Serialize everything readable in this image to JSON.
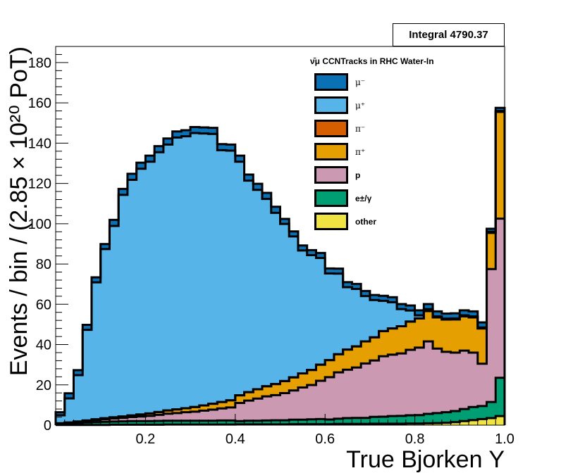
{
  "stat_box": {
    "label": "Integral 4790.37"
  },
  "legend": {
    "title": "ν̄μ CCNTracks in RHC Water-In",
    "items": [
      {
        "label": "μ⁻",
        "color": "#0a71b4",
        "bold": false
      },
      {
        "label": "μ⁺",
        "color": "#56b4e9",
        "bold": false
      },
      {
        "label": "π⁻",
        "color": "#d55e00",
        "bold": false
      },
      {
        "label": "π⁺",
        "color": "#e69f00",
        "bold": false
      },
      {
        "label": "p",
        "color": "#cc99b3",
        "bold": true
      },
      {
        "label": "e±/γ",
        "color": "#009e73",
        "bold": true
      },
      {
        "label": "other",
        "color": "#f0e442",
        "bold": true
      }
    ]
  },
  "chart_data": {
    "type": "area",
    "stacked": true,
    "xlabel": "True Bjorken Y",
    "ylabel": "Events / bin / (2.85 × 10²⁰ PoT)",
    "xlim": [
      0,
      1
    ],
    "ylim": [
      0,
      188
    ],
    "xticks": [
      "0.2",
      "0.4",
      "0.6",
      "0.8",
      "1.0"
    ],
    "yticks": [
      "0",
      "20",
      "40",
      "60",
      "80",
      "100",
      "120",
      "140",
      "160",
      "180"
    ],
    "bin_edges_start": 0.0,
    "bin_width": 0.02,
    "series": [
      {
        "name": "other",
        "color": "#f0e442",
        "values": [
          0.1,
          0.1,
          0.1,
          0.1,
          0.1,
          0.1,
          0.2,
          0.2,
          0.2,
          0.2,
          0.2,
          0.2,
          0.3,
          0.3,
          0.3,
          0.3,
          0.3,
          0.3,
          0.3,
          0.3,
          0.4,
          0.4,
          0.4,
          0.4,
          0.4,
          0.4,
          0.5,
          0.5,
          0.5,
          0.5,
          0.5,
          0.6,
          0.6,
          0.6,
          0.6,
          0.7,
          0.7,
          0.7,
          0.7,
          0.8,
          0.8,
          0.9,
          1.0,
          1.2,
          1.5,
          2.0,
          2.5,
          3.0,
          3.5,
          4.5
        ]
      },
      {
        "name": "e±/γ",
        "color": "#009e73",
        "values": [
          0.5,
          0.8,
          1.0,
          1.2,
          1.4,
          1.5,
          1.6,
          1.7,
          1.8,
          1.8,
          1.8,
          1.9,
          1.9,
          1.9,
          1.9,
          1.9,
          1.9,
          1.9,
          2.0,
          2.0,
          1.6,
          1.8,
          1.8,
          1.9,
          2.0,
          2.0,
          2.2,
          2.2,
          2.4,
          2.5,
          2.3,
          2.6,
          2.9,
          3.0,
          3.0,
          3.4,
          3.5,
          3.8,
          3.9,
          4.1,
          4.2,
          4.7,
          5.0,
          5.2,
          5.5,
          6.0,
          6.5,
          6.5,
          8.0,
          19.0
        ]
      },
      {
        "name": "p",
        "color": "#cc99b3",
        "values": [
          0.2,
          0.3,
          0.5,
          0.7,
          1.0,
          1.3,
          1.5,
          1.7,
          2.0,
          2.3,
          2.6,
          3.0,
          3.5,
          3.8,
          4.2,
          4.5,
          5.0,
          5.5,
          6.0,
          6.5,
          9.0,
          10.0,
          11.0,
          12.0,
          12.5,
          13.5,
          14.5,
          16.0,
          17.0,
          19.0,
          21.0,
          23.0,
          24.0,
          25.0,
          27.0,
          28.0,
          30.0,
          30.5,
          31.0,
          32.5,
          33.5,
          36.0,
          32.0,
          30.0,
          29.0,
          29.0,
          27.0,
          21.0,
          66.0,
          79.0
        ]
      },
      {
        "name": "π⁺",
        "color": "#e69f00",
        "values": [
          0.1,
          0.1,
          0.2,
          0.3,
          0.4,
          0.5,
          0.6,
          0.7,
          0.8,
          1.0,
          1.2,
          1.4,
          1.6,
          1.8,
          2.0,
          2.3,
          2.6,
          2.9,
          3.2,
          3.5,
          3.8,
          4.2,
          4.6,
          5.0,
          5.5,
          6.0,
          6.5,
          7.0,
          7.5,
          8.0,
          8.5,
          9.0,
          10.0,
          10.5,
          11.0,
          11.5,
          12.5,
          13.0,
          13.5,
          14.0,
          14.5,
          15.0,
          15.5,
          16.0,
          16.5,
          17.0,
          17.5,
          17.5,
          18.0,
          53.0
        ]
      },
      {
        "name": "π⁻",
        "color": "#d55e00",
        "values": [
          0,
          0,
          0,
          0,
          0,
          0,
          0,
          0,
          0,
          0,
          0,
          0,
          0,
          0,
          0,
          0,
          0,
          0,
          0,
          0,
          0,
          0,
          0,
          0,
          0,
          0,
          0,
          0,
          0,
          0,
          0,
          0,
          0,
          0,
          0,
          0,
          0,
          0,
          0,
          0,
          0,
          0,
          0,
          0,
          0,
          0,
          0,
          0,
          0,
          0
        ]
      },
      {
        "name": "μ⁺",
        "color": "#56b4e9",
        "values": [
          4.0,
          12.0,
          23.0,
          45.0,
          68.0,
          84.0,
          95.0,
          110.0,
          117.0,
          122.0,
          125.0,
          129.0,
          132.0,
          135.0,
          135.0,
          136.0,
          135.0,
          134.0,
          125.0,
          124.0,
          116.0,
          105.0,
          99.0,
          93.0,
          85.0,
          78.0,
          70.0,
          61.0,
          57.0,
          53.0,
          43.0,
          40.0,
          31.0,
          28.5,
          22.5,
          18.5,
          15.0,
          13.0,
          8.5,
          5.5,
          1.5,
          1.0,
          0.5,
          0.5,
          0.5,
          0.5,
          0.5,
          0.5,
          0.5,
          0.5
        ]
      },
      {
        "name": "μ⁻",
        "color": "#0a71b4",
        "values": [
          1.5,
          2.5,
          2.5,
          2.5,
          2.5,
          2.5,
          3.0,
          3.0,
          3.0,
          3.0,
          3.0,
          3.0,
          3.0,
          3.0,
          3.0,
          3.0,
          3.0,
          3.0,
          3.0,
          3.0,
          3.0,
          3.0,
          3.0,
          3.0,
          3.0,
          2.5,
          2.5,
          2.5,
          2.5,
          2.5,
          2.5,
          2.5,
          2.5,
          2.5,
          2.5,
          2.5,
          2.5,
          2.5,
          2.5,
          2.5,
          2.5,
          2.5,
          2.5,
          2.5,
          2.5,
          2.5,
          2.5,
          2.5,
          1.5,
          1.5
        ]
      }
    ]
  }
}
